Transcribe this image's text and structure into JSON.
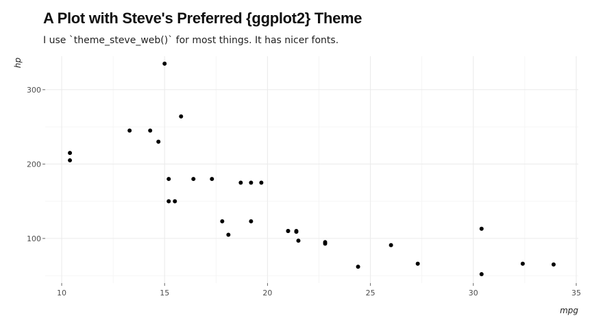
{
  "chart_data": {
    "type": "scatter",
    "title": "A Plot with Steve's Preferred {ggplot2} Theme",
    "subtitle": "I use `theme_steve_web()` for most things. It has nicer fonts.",
    "xlabel": "mpg",
    "ylabel": "hp",
    "xlim": [
      9.2,
      35.1
    ],
    "ylim": [
      40,
      345
    ],
    "x_ticks": [
      10,
      15,
      20,
      25,
      30,
      35
    ],
    "y_ticks": [
      100,
      200,
      300
    ],
    "grid": true,
    "point_color": "#000000",
    "points": [
      {
        "x": 21.0,
        "y": 110
      },
      {
        "x": 21.0,
        "y": 110
      },
      {
        "x": 22.8,
        "y": 93
      },
      {
        "x": 21.4,
        "y": 110
      },
      {
        "x": 18.7,
        "y": 175
      },
      {
        "x": 18.1,
        "y": 105
      },
      {
        "x": 14.3,
        "y": 245
      },
      {
        "x": 24.4,
        "y": 62
      },
      {
        "x": 22.8,
        "y": 95
      },
      {
        "x": 19.2,
        "y": 123
      },
      {
        "x": 17.8,
        "y": 123
      },
      {
        "x": 16.4,
        "y": 180
      },
      {
        "x": 17.3,
        "y": 180
      },
      {
        "x": 15.2,
        "y": 180
      },
      {
        "x": 10.4,
        "y": 205
      },
      {
        "x": 10.4,
        "y": 215
      },
      {
        "x": 14.7,
        "y": 230
      },
      {
        "x": 32.4,
        "y": 66
      },
      {
        "x": 30.4,
        "y": 52
      },
      {
        "x": 33.9,
        "y": 65
      },
      {
        "x": 21.5,
        "y": 97
      },
      {
        "x": 15.5,
        "y": 150
      },
      {
        "x": 15.2,
        "y": 150
      },
      {
        "x": 13.3,
        "y": 245
      },
      {
        "x": 19.2,
        "y": 175
      },
      {
        "x": 27.3,
        "y": 66
      },
      {
        "x": 26.0,
        "y": 91
      },
      {
        "x": 30.4,
        "y": 113
      },
      {
        "x": 15.8,
        "y": 264
      },
      {
        "x": 19.7,
        "y": 175
      },
      {
        "x": 15.0,
        "y": 335
      },
      {
        "x": 21.4,
        "y": 109
      }
    ]
  }
}
